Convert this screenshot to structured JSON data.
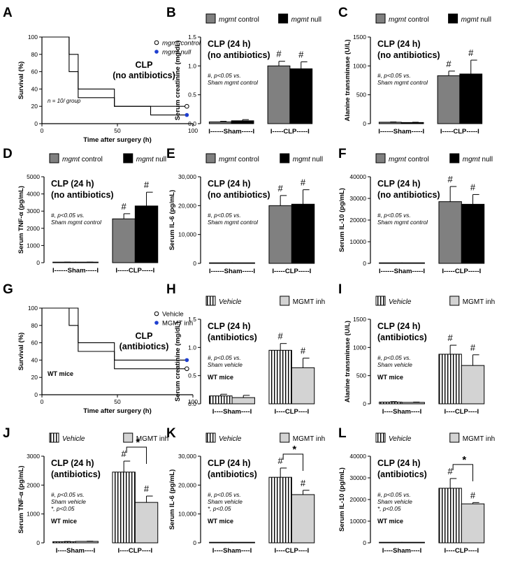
{
  "colors": {
    "gray": "#808080",
    "black": "#000000",
    "light": "#d3d3d3",
    "blue": "#1f3fd0"
  },
  "chart_data": [
    {
      "letter": "A",
      "type": "line",
      "kind": "survival",
      "title": "CLP",
      "subtitle": "(no antibiotics)",
      "xlabel": "Time after surgery (h)",
      "ylabel": "Survival (%)",
      "xlim": [
        0,
        100
      ],
      "ylim": [
        0,
        100
      ],
      "xticks": [
        "0",
        "50",
        "100"
      ],
      "yticks": [
        "0",
        "20",
        "40",
        "60",
        "80",
        "100"
      ],
      "note1": "n = 10/ group",
      "note2": "",
      "series": [
        {
          "name": "mgmt control",
          "italic": true,
          "marker": "open",
          "x": [
            0,
            18,
            18,
            24,
            24,
            48,
            48,
            96
          ],
          "y": [
            100,
            100,
            80,
            80,
            40,
            40,
            20,
            20
          ]
        },
        {
          "name": "mgmt null",
          "italic": true,
          "marker": "blue",
          "x": [
            0,
            18,
            18,
            24,
            24,
            48,
            48,
            72,
            72,
            96
          ],
          "y": [
            100,
            100,
            60,
            60,
            30,
            30,
            20,
            20,
            10,
            10
          ]
        }
      ]
    },
    {
      "letter": "B",
      "type": "bar",
      "title": "CLP (24 h)",
      "subtitle": "(no antibiotics)",
      "ylabel": "Serum creatinine (mg/dL)",
      "ylim": [
        0,
        1.5
      ],
      "yticks": [
        "0.0",
        "0.5",
        "1.0",
        "1.5"
      ],
      "group1": "I------Sham-----I",
      "group2": "I-----CLP-----I",
      "legend": [
        {
          "name": "mgmt",
          "suffix": " control",
          "italic": true,
          "style": "gray"
        },
        {
          "name": "mgmt",
          "suffix": " null",
          "italic": true,
          "style": "black"
        }
      ],
      "values": [
        0.03,
        0.05,
        1.0,
        0.95
      ],
      "errors": [
        0.01,
        0.02,
        0.08,
        0.12
      ],
      "note": [
        "#, p<0.05 vs.",
        "Sham mgmt control"
      ],
      "hash": [
        "",
        "",
        "#",
        "#"
      ]
    },
    {
      "letter": "C",
      "type": "bar",
      "title": "CLP (24 h)",
      "subtitle": "(no antibiotics)",
      "ylabel": "Alanine transminase (U/L)",
      "ylim": [
        0,
        1500
      ],
      "yticks": [
        "0",
        "500",
        "1000",
        "1500"
      ],
      "group1": "I------Sham-----I",
      "group2": "I-----CLP-----I",
      "legend": [
        {
          "name": "mgmt",
          "suffix": " control",
          "italic": true,
          "style": "gray"
        },
        {
          "name": "mgmt",
          "suffix": " null",
          "italic": true,
          "style": "black"
        }
      ],
      "values": [
        25,
        20,
        830,
        860
      ],
      "errors": [
        5,
        5,
        80,
        240
      ],
      "note": [
        "#, p<0.05 vs.",
        "Sham mgmt control"
      ],
      "hash": [
        "",
        "",
        "#",
        "#"
      ]
    },
    {
      "letter": "D",
      "type": "bar",
      "title": "CLP (24 h)",
      "subtitle": "(no antibiotics)",
      "ylabel": "Serum TNF-α (pg/mL)",
      "ylim": [
        0,
        5000
      ],
      "yticks": [
        "0",
        "1000",
        "2000",
        "3000",
        "4000",
        "5000"
      ],
      "group1": "I------Sham-----I",
      "group2": "I-----CLP-----I",
      "legend": [
        {
          "name": "mgmt",
          "suffix": " control",
          "italic": true,
          "style": "gray"
        },
        {
          "name": "mgmt",
          "suffix": " null",
          "italic": true,
          "style": "black"
        }
      ],
      "values": [
        30,
        30,
        2550,
        3300
      ],
      "errors": [
        5,
        5,
        300,
        800
      ],
      "note": [
        "#, p<0.05 vs.",
        "Sham mgmt control"
      ],
      "hash": [
        "",
        "",
        "#",
        "#"
      ]
    },
    {
      "letter": "E",
      "type": "bar",
      "title": "CLP (24 h)",
      "subtitle": "(no antibiotics)",
      "ylabel": "Serum IL-6 (pg/mL)",
      "ylim": [
        0,
        30000
      ],
      "yticks": [
        "0",
        "10,000",
        "20,000",
        "30,000"
      ],
      "group1": "I------Sham-----I",
      "group2": "I-----CLP-----I",
      "legend": [
        {
          "name": "mgmt",
          "suffix": " control",
          "italic": true,
          "style": "gray"
        },
        {
          "name": "mgmt",
          "suffix": " null",
          "italic": true,
          "style": "black"
        }
      ],
      "values": [
        0,
        0,
        20000,
        20500
      ],
      "errors": [
        0,
        0,
        3500,
        5000
      ],
      "note": [
        "#, p<0.05 vs.",
        "Sham mgmt control"
      ],
      "hash": [
        "",
        "",
        "#",
        "#"
      ]
    },
    {
      "letter": "F",
      "type": "bar",
      "title": "CLP (24 h)",
      "subtitle": "(no antibiotics)",
      "ylabel": "Serum IL-10 (pg/mL)",
      "ylim": [
        0,
        40000
      ],
      "yticks": [
        "0",
        "10000",
        "20000",
        "30000",
        "40000"
      ],
      "group1": "I------Sham-----I",
      "group2": "I-----CLP-----I",
      "legend": [
        {
          "name": "mgmt",
          "suffix": " control",
          "italic": true,
          "style": "gray"
        },
        {
          "name": "mgmt",
          "suffix": " null",
          "italic": true,
          "style": "black"
        }
      ],
      "values": [
        0,
        0,
        28500,
        27300
      ],
      "errors": [
        0,
        0,
        7000,
        4500
      ],
      "note": [
        "#, p<0.05 vs.",
        "Sham mgmt control"
      ],
      "hash": [
        "",
        "",
        "#",
        "#"
      ]
    },
    {
      "letter": "G",
      "type": "line",
      "kind": "survival",
      "title": "CLP",
      "subtitle": "(antibiotics)",
      "xlabel": "Time after surgery (h)",
      "ylabel": "Survival (%)",
      "xlim": [
        0,
        100
      ],
      "ylim": [
        0,
        100
      ],
      "xticks": [
        "0",
        "50",
        "100"
      ],
      "yticks": [
        "0",
        "20",
        "40",
        "60",
        "80",
        "100"
      ],
      "note1": "",
      "note2": "WT mice",
      "series": [
        {
          "name": "Vehicle",
          "italic": false,
          "marker": "open",
          "x": [
            0,
            18,
            18,
            24,
            24,
            48,
            48,
            96
          ],
          "y": [
            100,
            100,
            80,
            80,
            50,
            50,
            30,
            30
          ]
        },
        {
          "name": "MGMT inh",
          "italic": false,
          "marker": "blue",
          "x": [
            0,
            18,
            18,
            24,
            24,
            48,
            48,
            96
          ],
          "y": [
            100,
            100,
            100,
            100,
            60,
            60,
            40,
            40
          ]
        }
      ]
    },
    {
      "letter": "H",
      "type": "bar",
      "title": "CLP (24 h)",
      "subtitle": "(antibiotics)",
      "ylabel": "Serum creatinine (mg/dL)",
      "ylim": [
        0,
        1.5
      ],
      "yticks": [
        "0.0",
        "0.5",
        "1.0",
        "1.5"
      ],
      "group1": "I----Sham----I",
      "group2": "I----CLP----I",
      "legend": [
        {
          "name": "Vehicle",
          "suffix": "",
          "italic": true,
          "style": "stripe"
        },
        {
          "name": "MGMT inh",
          "suffix": "",
          "italic": false,
          "style": "light"
        }
      ],
      "values": [
        0.14,
        0.11,
        0.95,
        0.64
      ],
      "errors": [
        0.03,
        0.04,
        0.12,
        0.17
      ],
      "note": [
        "#, p<0.05 vs.",
        "Sham vehicle"
      ],
      "wt": "WT mice",
      "hash": [
        "",
        "",
        "#",
        "#"
      ]
    },
    {
      "letter": "I",
      "type": "bar",
      "title": "CLP (24 h)",
      "subtitle": "(antibiotics)",
      "ylabel": "Alanine transminase (U/L)",
      "ylim": [
        0,
        1500
      ],
      "yticks": [
        "0",
        "500",
        "1000",
        "1500"
      ],
      "group1": "I----Sham----I",
      "group2": "I----CLP----I",
      "legend": [
        {
          "name": "Vehicle",
          "suffix": "",
          "italic": true,
          "style": "stripe"
        },
        {
          "name": "MGMT inh",
          "suffix": "",
          "italic": false,
          "style": "light"
        }
      ],
      "values": [
        30,
        25,
        880,
        680
      ],
      "errors": [
        8,
        6,
        160,
        190
      ],
      "note": [
        "#, p<0.05 vs.",
        "Sham vehicle"
      ],
      "wt": "WT mice",
      "hash": [
        "",
        "",
        "#",
        "#"
      ]
    },
    {
      "letter": "J",
      "type": "bar",
      "title": "CLP (24 h)",
      "subtitle": "(antibiotics)",
      "ylabel": "Serum TNF-α (pg/mL)",
      "ylim": [
        0,
        3000
      ],
      "yticks": [
        "0",
        "1000",
        "2000",
        "3000"
      ],
      "group1": "I----Sham----I",
      "group2": "I----CLP----I",
      "legend": [
        {
          "name": "Vehicle",
          "suffix": "",
          "italic": true,
          "style": "stripe"
        },
        {
          "name": "MGMT inh",
          "suffix": "",
          "italic": false,
          "style": "light"
        }
      ],
      "values": [
        40,
        50,
        2450,
        1400
      ],
      "errors": [
        8,
        8,
        380,
        220
      ],
      "note": [
        "#, p<0.05 vs.",
        "Sham vehicle",
        "*, p<0.05"
      ],
      "wt": "WT mice",
      "hash": [
        "",
        "",
        "#",
        "#"
      ],
      "star": "*"
    },
    {
      "letter": "K",
      "type": "bar",
      "title": "CLP (24 h)",
      "subtitle": "(antibiotics)",
      "ylabel": "Serum IL-6 (pg/mL)",
      "ylim": [
        0,
        30000
      ],
      "yticks": [
        "0",
        "10,000",
        "20,000",
        "30,000"
      ],
      "group1": "I----Sham----I",
      "group2": "I----CLP----I",
      "legend": [
        {
          "name": "Vehicle",
          "suffix": "",
          "italic": true,
          "style": "stripe"
        },
        {
          "name": "MGMT inh",
          "suffix": "",
          "italic": false,
          "style": "light"
        }
      ],
      "values": [
        0,
        0,
        22700,
        16700
      ],
      "errors": [
        0,
        0,
        3200,
        1500
      ],
      "note": [
        "#, p<0.05 vs.",
        "Sham vehicle",
        "*, p<0.05"
      ],
      "wt": "WT mice",
      "hash": [
        "",
        "",
        "#",
        "#"
      ],
      "star": "*"
    },
    {
      "letter": "L",
      "type": "bar",
      "title": "CLP (24 h)",
      "subtitle": "(antibiotics)",
      "ylabel": "Serum IL-10 (pg/mL)",
      "ylim": [
        0,
        40000
      ],
      "yticks": [
        "0",
        "10000",
        "20000",
        "30000",
        "40000"
      ],
      "group1": "I----Sham----I",
      "group2": "I----CLP----I",
      "legend": [
        {
          "name": "Vehicle",
          "suffix": "",
          "italic": true,
          "style": "stripe"
        },
        {
          "name": "MGMT inh",
          "suffix": "",
          "italic": false,
          "style": "light"
        }
      ],
      "values": [
        0,
        0,
        25200,
        18000
      ],
      "errors": [
        0,
        0,
        4500,
        600
      ],
      "note": [
        "#, p<0.05 vs.",
        "Sham vehicle",
        "*, p<0.05"
      ],
      "wt": "WT mice",
      "hash": [
        "",
        "",
        "#",
        "#"
      ],
      "star": "*"
    }
  ]
}
